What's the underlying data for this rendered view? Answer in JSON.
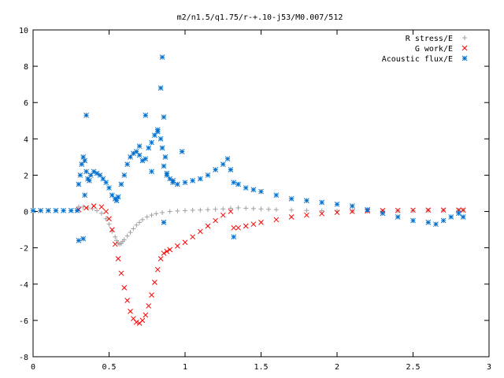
{
  "chart_data": {
    "type": "scatter",
    "title": "m2/n1.5/q1.75/r-+.10-j53/M0.007/512",
    "xlabel": "",
    "ylabel": "",
    "xlim": [
      0,
      3
    ],
    "ylim": [
      -8,
      10
    ],
    "x_ticks": [
      "0",
      "0.5",
      "1",
      "1.5",
      "2",
      "2.5",
      "3"
    ],
    "y_ticks": [
      "-8",
      "-6",
      "-4",
      "-2",
      "0",
      "2",
      "4",
      "6",
      "8",
      "10"
    ],
    "grid": false,
    "legend_position": "top-right",
    "series": [
      {
        "name": "R stress/E",
        "marker": "+",
        "color": "#a0a0a0",
        "x": [
          0.3,
          0.33,
          0.36,
          0.39,
          0.42,
          0.45,
          0.48,
          0.5,
          0.52,
          0.54,
          0.55,
          0.56,
          0.57,
          0.58,
          0.59,
          0.6,
          0.62,
          0.64,
          0.66,
          0.68,
          0.7,
          0.72,
          0.75,
          0.78,
          0.81,
          0.85,
          0.9,
          0.95,
          1.0,
          1.05,
          1.1,
          1.15,
          1.2,
          1.25,
          1.3,
          1.35,
          1.4,
          1.45,
          1.5,
          1.55,
          1.6,
          1.7,
          1.8,
          1.9,
          2.0,
          2.1,
          2.2,
          2.3,
          2.4,
          2.5,
          2.6,
          2.7,
          2.8,
          2.83
        ],
        "y": [
          0.25,
          0.25,
          0.2,
          0.15,
          0.05,
          -0.1,
          -0.4,
          -0.7,
          -1.1,
          -1.4,
          -1.6,
          -1.75,
          -1.8,
          -1.75,
          -1.65,
          -1.55,
          -1.35,
          -1.15,
          -0.95,
          -0.75,
          -0.6,
          -0.45,
          -0.3,
          -0.2,
          -0.12,
          -0.06,
          0.0,
          0.03,
          0.05,
          0.07,
          0.08,
          0.1,
          0.12,
          0.14,
          0.18,
          0.2,
          0.18,
          0.16,
          0.14,
          0.12,
          0.1,
          0.08,
          0.06,
          0.04,
          0.02,
          0.02,
          0.02,
          0.03,
          0.04,
          0.05,
          0.06,
          0.06,
          0.07,
          0.07
        ]
      },
      {
        "name": "G work/E",
        "marker": "x",
        "color": "#ff0000",
        "x": [
          0.3,
          0.35,
          0.4,
          0.45,
          0.48,
          0.5,
          0.52,
          0.54,
          0.56,
          0.58,
          0.6,
          0.62,
          0.64,
          0.66,
          0.68,
          0.7,
          0.72,
          0.74,
          0.76,
          0.78,
          0.8,
          0.82,
          0.84,
          0.86,
          0.88,
          0.9,
          0.95,
          1.0,
          1.05,
          1.1,
          1.15,
          1.2,
          1.25,
          1.3,
          1.32,
          1.35,
          1.4,
          1.45,
          1.5,
          1.6,
          1.7,
          1.8,
          1.9,
          2.0,
          2.1,
          2.2,
          2.3,
          2.4,
          2.5,
          2.6,
          2.7,
          2.8,
          2.83
        ],
        "y": [
          0.1,
          0.2,
          0.3,
          0.25,
          0.0,
          -0.4,
          -1.0,
          -1.8,
          -2.6,
          -3.4,
          -4.2,
          -4.9,
          -5.5,
          -5.9,
          -6.1,
          -6.15,
          -6.0,
          -5.7,
          -5.2,
          -4.6,
          -3.9,
          -3.2,
          -2.6,
          -2.3,
          -2.2,
          -2.1,
          -1.9,
          -1.7,
          -1.4,
          -1.1,
          -0.8,
          -0.5,
          -0.2,
          0.0,
          -0.9,
          -0.9,
          -0.8,
          -0.7,
          -0.6,
          -0.45,
          -0.3,
          -0.2,
          -0.12,
          -0.05,
          0.0,
          0.03,
          0.05,
          0.06,
          0.07,
          0.08,
          0.08,
          0.08,
          0.08
        ]
      },
      {
        "name": "Acoustic flux/E",
        "marker": "*",
        "color": "#0070d0",
        "x": [
          0.0,
          0.05,
          0.1,
          0.15,
          0.2,
          0.25,
          0.29,
          0.3,
          0.31,
          0.32,
          0.33,
          0.34,
          0.35,
          0.36,
          0.37,
          0.38,
          0.4,
          0.42,
          0.44,
          0.46,
          0.48,
          0.5,
          0.52,
          0.54,
          0.55,
          0.56,
          0.58,
          0.6,
          0.62,
          0.64,
          0.66,
          0.68,
          0.7,
          0.72,
          0.74,
          0.76,
          0.78,
          0.8,
          0.82,
          0.84,
          0.85,
          0.86,
          0.88,
          0.9,
          0.92,
          0.95,
          1.0,
          1.05,
          1.1,
          1.15,
          1.2,
          1.25,
          1.28,
          1.3,
          1.32,
          1.35,
          1.4,
          1.45,
          1.5,
          1.6,
          1.7,
          1.8,
          1.9,
          2.0,
          2.1,
          2.2,
          2.3,
          2.4,
          2.5,
          2.6,
          2.65,
          2.7,
          2.75,
          2.8,
          2.83,
          0.3,
          0.33,
          0.35,
          0.34,
          0.7,
          0.74,
          0.78,
          0.82,
          0.84,
          0.85,
          0.86,
          0.86,
          0.87,
          0.88,
          0.92,
          0.98,
          1.32
        ],
        "y": [
          0.05,
          0.05,
          0.05,
          0.05,
          0.05,
          0.05,
          0.05,
          1.5,
          2.0,
          2.6,
          3.0,
          2.8,
          2.2,
          1.8,
          1.7,
          2.0,
          2.2,
          2.1,
          2.0,
          1.8,
          1.6,
          1.3,
          0.9,
          0.7,
          0.6,
          0.8,
          1.5,
          2.0,
          2.6,
          3.0,
          3.2,
          3.3,
          3.1,
          2.8,
          2.9,
          3.5,
          3.8,
          4.2,
          4.4,
          4.0,
          3.5,
          2.5,
          2.0,
          1.8,
          1.6,
          1.5,
          1.6,
          1.7,
          1.8,
          2.0,
          2.3,
          2.6,
          2.9,
          2.3,
          1.6,
          1.5,
          1.3,
          1.2,
          1.1,
          0.9,
          0.7,
          0.6,
          0.5,
          0.4,
          0.3,
          0.1,
          -0.1,
          -0.3,
          -0.5,
          -0.6,
          -0.7,
          -0.5,
          -0.3,
          -0.1,
          -0.3,
          -1.6,
          -1.5,
          5.3,
          0.9,
          3.6,
          5.3,
          2.2,
          4.5,
          6.8,
          8.5,
          5.2,
          -0.6,
          3.0,
          2.1,
          1.7,
          3.3,
          -1.4
        ]
      }
    ]
  }
}
